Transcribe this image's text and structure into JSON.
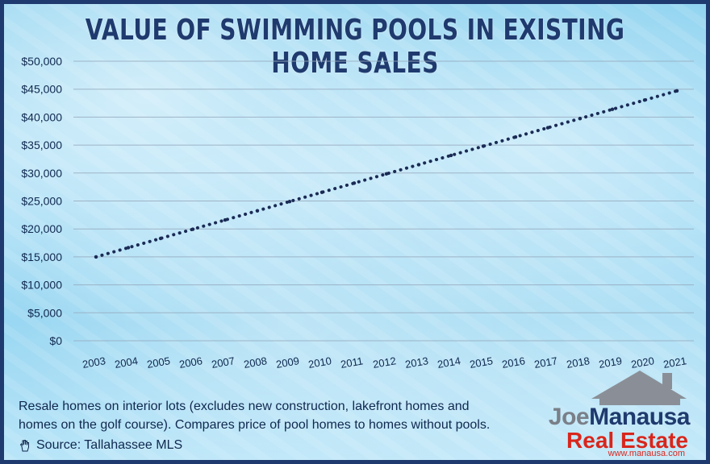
{
  "title": "VALUE OF SWIMMING POOLS IN EXISTING HOME SALES",
  "chart_data": {
    "type": "line",
    "line_style": "dotted",
    "title": "VALUE OF SWIMMING POOLS IN EXISTING HOME SALES",
    "x": [
      "2003",
      "2004",
      "2005",
      "2006",
      "2007",
      "2008",
      "2009",
      "2010",
      "2011",
      "2012",
      "2013",
      "2014",
      "2015",
      "2016",
      "2017",
      "2018",
      "2019",
      "2020",
      "2021"
    ],
    "series": [
      {
        "values": [
          15000,
          16650,
          18300,
          19950,
          21600,
          23250,
          24900,
          26550,
          28200,
          29850,
          31500,
          33150,
          34800,
          36450,
          38100,
          39750,
          41400,
          43050,
          44700
        ],
        "color": "#1a2b55"
      }
    ],
    "yticks": [
      "$0",
      "$5,000",
      "$10,000",
      "$15,000",
      "$20,000",
      "$25,000",
      "$30,000",
      "$35,000",
      "$40,000",
      "$45,000",
      "$50,000"
    ],
    "ylim": [
      0,
      50000
    ],
    "grid": true,
    "xlabel": "",
    "ylabel": ""
  },
  "caption": {
    "line1": "Resale homes on interior lots (excludes new construction, lakefront homes and",
    "line2": "homes on the golf course). Compares price of pool homes to homes without pools.",
    "source": "Source: Tallahassee MLS"
  },
  "logo": {
    "name_part1": "Joe",
    "name_part2": "Manausa",
    "subtitle": "Real Estate",
    "url": "www.manausa.com"
  },
  "colors": {
    "title": "#1f3a6e",
    "border": "#1f3a6e",
    "line": "#1a2b55",
    "logo_red": "#d9261c"
  }
}
